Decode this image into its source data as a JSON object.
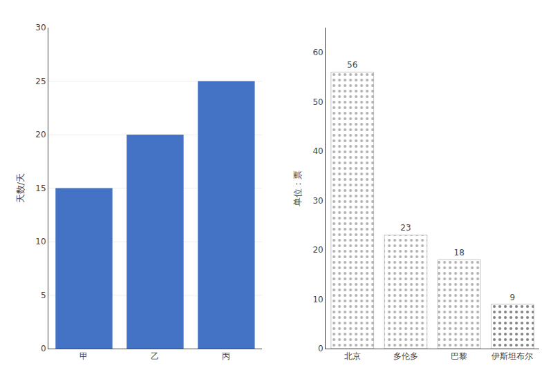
{
  "chart_data": [
    {
      "type": "bar",
      "categories": [
        "甲",
        "乙",
        "丙"
      ],
      "values": [
        15,
        20,
        25
      ],
      "color": "#4472c4",
      "ylabel": "天数/天",
      "ylim": [
        0,
        30
      ],
      "yticks": [
        0,
        5,
        10,
        15,
        20,
        25,
        30
      ],
      "grid": true,
      "data_labels": false
    },
    {
      "type": "bar",
      "categories": [
        "北京",
        "多伦多",
        "巴黎",
        "伊斯坦布尔"
      ],
      "values": [
        56,
        23,
        18,
        9
      ],
      "colors": [
        "#b0b0b0",
        "#b0b0b0",
        "#b0b0b0",
        "#808080"
      ],
      "ylabel": "单位：票",
      "ylim": [
        0,
        65
      ],
      "yticks": [
        0,
        10,
        20,
        30,
        40,
        50,
        60
      ],
      "grid": false,
      "data_labels": true
    }
  ]
}
